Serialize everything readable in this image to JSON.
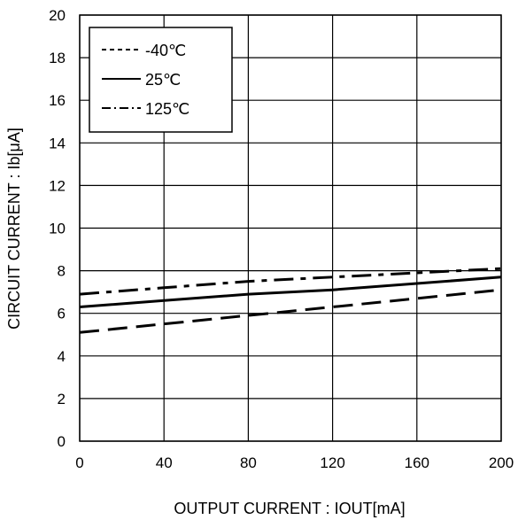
{
  "chart_data": {
    "type": "line",
    "xlabel": "OUTPUT CURRENT : IOUT[mA]",
    "ylabel": "CIRCUIT CURRENT : Ib[μA]",
    "xlim": [
      0,
      200
    ],
    "ylim": [
      0,
      20
    ],
    "xticks": [
      "0",
      "40",
      "80",
      "120",
      "160",
      "200"
    ],
    "yticks": [
      "0",
      "2",
      "4",
      "6",
      "8",
      "10",
      "12",
      "14",
      "16",
      "18",
      "20"
    ],
    "grid": true,
    "legend_position": "top-left",
    "series": [
      {
        "name": "-40℃",
        "style": "dashed",
        "x": [
          0,
          40,
          80,
          120,
          160,
          200
        ],
        "y": [
          5.1,
          5.5,
          5.9,
          6.3,
          6.7,
          7.1
        ]
      },
      {
        "name": "25℃",
        "style": "solid",
        "x": [
          0,
          40,
          80,
          120,
          160,
          200
        ],
        "y": [
          6.3,
          6.6,
          6.9,
          7.1,
          7.4,
          7.7
        ]
      },
      {
        "name": "125℃",
        "style": "dash-dot",
        "x": [
          0,
          40,
          80,
          120,
          160,
          200
        ],
        "y": [
          6.9,
          7.2,
          7.5,
          7.7,
          7.9,
          8.1
        ]
      }
    ]
  }
}
